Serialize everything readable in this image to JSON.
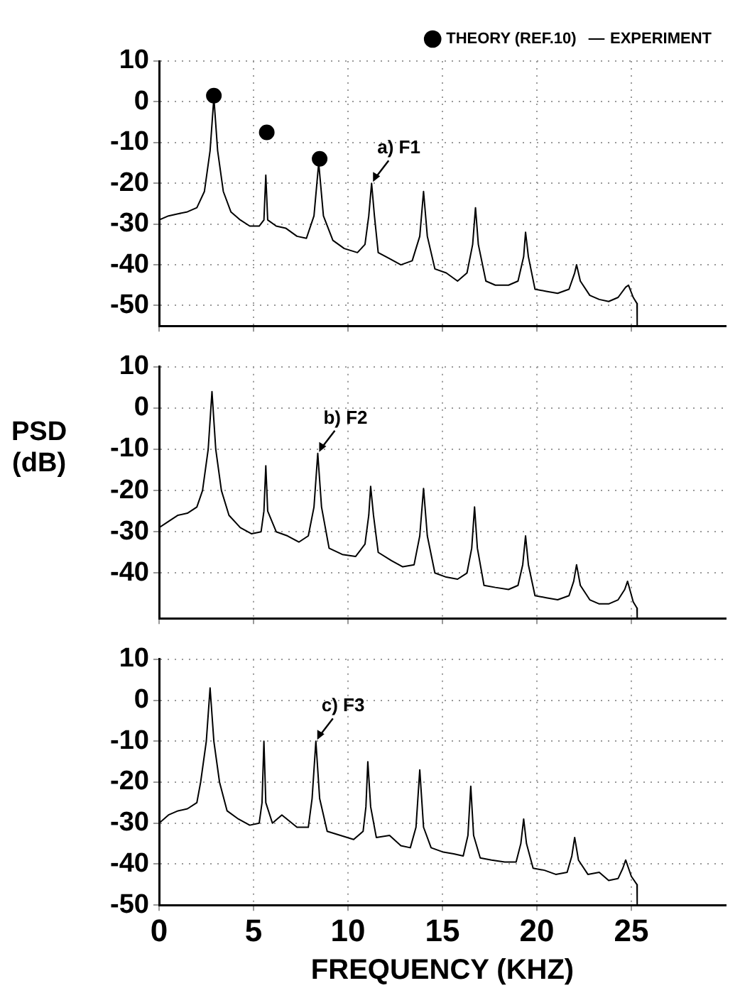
{
  "chart_data": [
    {
      "type": "line",
      "xlim": [
        0,
        30
      ],
      "xticks": [
        0,
        5,
        10,
        15,
        20,
        25
      ],
      "ylim": [
        -55,
        10
      ],
      "yticks": [
        10,
        0,
        -10,
        -20,
        -30,
        -40,
        -50
      ],
      "grid": true,
      "legend": "top right",
      "tick_labels": "y",
      "annotations": [
        {
          "text": "a) F1",
          "x": 11.25,
          "y": -20
        }
      ],
      "series": [
        {
          "name": "THEORY (REF.10)",
          "type": "scatter",
          "marker": "circle",
          "color": "#000000",
          "x": [
            2.9,
            5.7,
            8.5
          ],
          "values": [
            1.5,
            -7.5,
            -14
          ]
        },
        {
          "name": "EXPERIMENT",
          "type": "line",
          "marker": "none",
          "color": "#000000",
          "x": [
            0,
            0.5,
            1,
            1.5,
            2,
            2.4,
            2.7,
            2.9,
            3.1,
            3.4,
            3.8,
            4.3,
            4.8,
            5.3,
            5.55,
            5.65,
            5.75,
            6.2,
            6.7,
            7.3,
            7.8,
            8.2,
            8.45,
            8.7,
            9.2,
            9.8,
            10.5,
            10.9,
            11.1,
            11.25,
            11.4,
            11.6,
            12.2,
            12.8,
            13.4,
            13.8,
            14.0,
            14.2,
            14.6,
            15.2,
            15.8,
            16.3,
            16.6,
            16.75,
            16.9,
            17.3,
            17.8,
            18.5,
            19.0,
            19.3,
            19.4,
            19.55,
            19.9,
            20.5,
            21.1,
            21.7,
            22.0,
            22.1,
            22.3,
            22.8,
            23.3,
            23.8,
            24.3,
            24.7,
            24.85,
            25.1,
            25.3,
            25.31
          ],
          "values": [
            -29,
            -28,
            -27.5,
            -27,
            -26,
            -22,
            -12,
            1,
            -12,
            -22,
            -27,
            -29,
            -30.5,
            -30.5,
            -29,
            -18,
            -29,
            -30.5,
            -31,
            -33,
            -33.5,
            -28,
            -15,
            -28,
            -34,
            -36,
            -37,
            -35,
            -28,
            -20,
            -28,
            -37,
            -38.5,
            -40,
            -39,
            -33,
            -22,
            -33,
            -41,
            -42,
            -44,
            -42,
            -35,
            -26,
            -35,
            -44,
            -45,
            -45,
            -44,
            -38,
            -32,
            -38,
            -46,
            -46.5,
            -47,
            -46,
            -42,
            -40,
            -44,
            -47.5,
            -48.5,
            -49,
            -48,
            -45.5,
            -45,
            -48,
            -49.5,
            -55
          ]
        }
      ]
    },
    {
      "type": "line",
      "xlim": [
        0,
        30
      ],
      "xticks": [
        0,
        5,
        10,
        15,
        20,
        25
      ],
      "ylim": [
        -51,
        10
      ],
      "yticks": [
        10,
        0,
        -10,
        -20,
        -30,
        -40
      ],
      "grid": true,
      "tick_labels": "y",
      "ylabel": "PSD (dB)",
      "annotations": [
        {
          "text": "b) F2",
          "x": 8.4,
          "y": -11
        }
      ],
      "series": [
        {
          "type": "line",
          "marker": "none",
          "color": "#000000",
          "x": [
            0,
            0.5,
            1,
            1.5,
            2,
            2.3,
            2.6,
            2.8,
            3.0,
            3.3,
            3.7,
            4.3,
            4.9,
            5.4,
            5.55,
            5.65,
            5.75,
            6.2,
            6.8,
            7.4,
            7.9,
            8.2,
            8.4,
            8.6,
            9.0,
            9.7,
            10.4,
            10.9,
            11.1,
            11.2,
            11.35,
            11.6,
            12.3,
            12.9,
            13.5,
            13.8,
            14.0,
            14.2,
            14.6,
            15.2,
            15.8,
            16.3,
            16.55,
            16.7,
            16.85,
            17.2,
            17.8,
            18.5,
            19.0,
            19.25,
            19.4,
            19.55,
            19.9,
            20.5,
            21.1,
            21.7,
            21.95,
            22.1,
            22.3,
            22.8,
            23.3,
            23.8,
            24.3,
            24.65,
            24.8,
            25.1,
            25.3,
            25.31
          ],
          "values": [
            -29,
            -27.5,
            -26,
            -25.5,
            -24,
            -20,
            -10,
            4,
            -10,
            -20,
            -26,
            -29,
            -30.5,
            -30,
            -25,
            -14,
            -25,
            -30,
            -31,
            -32.5,
            -31,
            -24,
            -11,
            -24,
            -34,
            -35.5,
            -36,
            -33,
            -26,
            -19,
            -26,
            -35,
            -37,
            -38.5,
            -38,
            -31,
            -19.5,
            -31,
            -40,
            -41,
            -41.5,
            -40,
            -34,
            -24,
            -34,
            -43,
            -43.5,
            -44,
            -43,
            -38,
            -31,
            -38,
            -45.5,
            -46,
            -46.5,
            -45.5,
            -42,
            -38,
            -43,
            -46.5,
            -47.5,
            -47.5,
            -46.5,
            -44,
            -42,
            -47,
            -48.5,
            -51
          ]
        }
      ]
    },
    {
      "type": "line",
      "xlim": [
        0,
        30
      ],
      "xticks": [
        0,
        5,
        10,
        15,
        20,
        25
      ],
      "ylim": [
        -50,
        10
      ],
      "yticks": [
        10,
        0,
        -10,
        -20,
        -30,
        -40,
        -50
      ],
      "grid": true,
      "xlabel": "FREQUENCY (KHZ)",
      "annotations": [
        {
          "text": "c) F3",
          "x": 8.3,
          "y": -10
        }
      ],
      "series": [
        {
          "type": "line",
          "marker": "none",
          "color": "#000000",
          "x": [
            0,
            0.5,
            1,
            1.5,
            2,
            2.2,
            2.5,
            2.7,
            2.9,
            3.2,
            3.6,
            4.2,
            4.8,
            5.3,
            5.45,
            5.55,
            5.65,
            6.0,
            6.5,
            7.3,
            7.9,
            8.1,
            8.3,
            8.5,
            8.9,
            9.6,
            10.3,
            10.8,
            10.95,
            11.05,
            11.2,
            11.5,
            12.2,
            12.8,
            13.3,
            13.6,
            13.8,
            14.0,
            14.4,
            15.0,
            15.6,
            16.1,
            16.35,
            16.5,
            16.65,
            17.0,
            17.6,
            18.3,
            18.9,
            19.15,
            19.3,
            19.45,
            19.8,
            20.4,
            21.0,
            21.6,
            21.85,
            22.0,
            22.2,
            22.7,
            23.3,
            23.8,
            24.3,
            24.55,
            24.7,
            25.0,
            25.3,
            25.31
          ],
          "values": [
            -30,
            -28,
            -27,
            -26.5,
            -25,
            -20,
            -10,
            3,
            -10,
            -20,
            -27,
            -29,
            -30.5,
            -30,
            -25,
            -10,
            -25,
            -30,
            -28,
            -31,
            -31,
            -24,
            -10,
            -24,
            -32,
            -33,
            -34,
            -32,
            -26,
            -15,
            -26,
            -33.5,
            -33,
            -35.5,
            -36,
            -31,
            -17,
            -31,
            -36,
            -37,
            -37.5,
            -38,
            -33,
            -21,
            -33,
            -38.5,
            -39,
            -39.5,
            -39.5,
            -35,
            -29,
            -35,
            -41,
            -41.5,
            -42.5,
            -42,
            -38,
            -33.5,
            -39,
            -42.5,
            -42,
            -44,
            -43.5,
            -41,
            -39,
            -43,
            -45,
            -50
          ]
        }
      ]
    }
  ]
}
